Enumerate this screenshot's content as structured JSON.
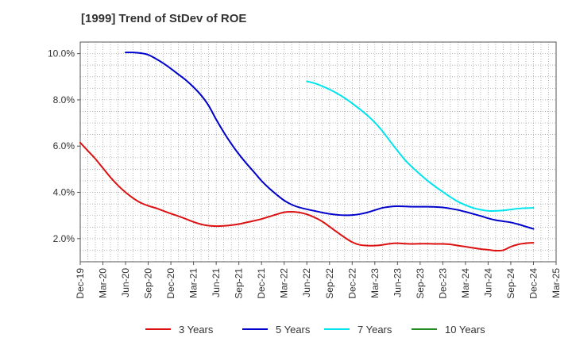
{
  "chart_data": {
    "type": "line",
    "title": "[1999]  Trend of StDev of ROE",
    "xlabel": "",
    "ylabel": "",
    "ylim": [
      1.0,
      10.5
    ],
    "y_ticks": [
      2.0,
      4.0,
      6.0,
      8.0,
      10.0
    ],
    "y_tick_labels": [
      "2.0%",
      "4.0%",
      "6.0%",
      "8.0%",
      "10.0%"
    ],
    "x_ticks": [
      "Dec-19",
      "Mar-20",
      "Jun-20",
      "Sep-20",
      "Dec-20",
      "Mar-21",
      "Jun-21",
      "Sep-21",
      "Dec-21",
      "Mar-22",
      "Jun-22",
      "Sep-22",
      "Dec-22",
      "Mar-23",
      "Jun-23",
      "Sep-23",
      "Dec-23",
      "Mar-24",
      "Jun-24",
      "Sep-24",
      "Dec-24",
      "Mar-25"
    ],
    "grid": true,
    "legend_position": "bottom",
    "series": [
      {
        "name": "3 Years",
        "color": "#dd1111",
        "points": [
          [
            "Dec-19",
            6.15
          ],
          [
            "Jan-20",
            5.8
          ],
          [
            "Feb-20",
            5.45
          ],
          [
            "Mar-20",
            5.05
          ],
          [
            "Apr-20",
            4.65
          ],
          [
            "May-20",
            4.3
          ],
          [
            "Jun-20",
            4.0
          ],
          [
            "Jul-20",
            3.75
          ],
          [
            "Aug-20",
            3.55
          ],
          [
            "Sep-20",
            3.42
          ],
          [
            "Oct-20",
            3.32
          ],
          [
            "Nov-20",
            3.2
          ],
          [
            "Dec-20",
            3.08
          ],
          [
            "Jan-21",
            2.97
          ],
          [
            "Feb-21",
            2.85
          ],
          [
            "Mar-21",
            2.72
          ],
          [
            "Apr-21",
            2.62
          ],
          [
            "May-21",
            2.56
          ],
          [
            "Jun-21",
            2.54
          ],
          [
            "Jul-21",
            2.55
          ],
          [
            "Aug-21",
            2.58
          ],
          [
            "Sep-21",
            2.63
          ],
          [
            "Oct-21",
            2.7
          ],
          [
            "Nov-21",
            2.77
          ],
          [
            "Dec-21",
            2.85
          ],
          [
            "Jan-22",
            2.95
          ],
          [
            "Feb-22",
            3.05
          ],
          [
            "Mar-22",
            3.14
          ],
          [
            "Apr-22",
            3.16
          ],
          [
            "May-22",
            3.13
          ],
          [
            "Jun-22",
            3.05
          ],
          [
            "Jul-22",
            2.92
          ],
          [
            "Aug-22",
            2.75
          ],
          [
            "Sep-22",
            2.52
          ],
          [
            "Oct-22",
            2.28
          ],
          [
            "Nov-22",
            2.05
          ],
          [
            "Dec-22",
            1.85
          ],
          [
            "Jan-23",
            1.73
          ],
          [
            "Feb-23",
            1.7
          ],
          [
            "Mar-23",
            1.7
          ],
          [
            "Apr-23",
            1.73
          ],
          [
            "May-23",
            1.78
          ],
          [
            "Jun-23",
            1.8
          ],
          [
            "Jul-23",
            1.78
          ],
          [
            "Aug-23",
            1.77
          ],
          [
            "Sep-23",
            1.78
          ],
          [
            "Oct-23",
            1.78
          ],
          [
            "Nov-23",
            1.77
          ],
          [
            "Dec-23",
            1.77
          ],
          [
            "Jan-24",
            1.75
          ],
          [
            "Feb-24",
            1.7
          ],
          [
            "Mar-24",
            1.65
          ],
          [
            "Apr-24",
            1.6
          ],
          [
            "May-24",
            1.55
          ],
          [
            "Jun-24",
            1.52
          ],
          [
            "Jul-24",
            1.48
          ],
          [
            "Aug-24",
            1.5
          ],
          [
            "Sep-24",
            1.65
          ],
          [
            "Oct-24",
            1.75
          ],
          [
            "Nov-24",
            1.8
          ],
          [
            "Dec-24",
            1.82
          ]
        ]
      },
      {
        "name": "5 Years",
        "color": "#0000cc",
        "points": [
          [
            "Jun-20",
            10.05
          ],
          [
            "Jul-20",
            10.05
          ],
          [
            "Aug-20",
            10.02
          ],
          [
            "Sep-20",
            9.95
          ],
          [
            "Oct-20",
            9.78
          ],
          [
            "Nov-20",
            9.58
          ],
          [
            "Dec-20",
            9.35
          ],
          [
            "Jan-21",
            9.1
          ],
          [
            "Feb-21",
            8.85
          ],
          [
            "Mar-21",
            8.55
          ],
          [
            "Apr-21",
            8.2
          ],
          [
            "May-21",
            7.75
          ],
          [
            "Jun-21",
            7.15
          ],
          [
            "Jul-21",
            6.6
          ],
          [
            "Aug-21",
            6.1
          ],
          [
            "Sep-21",
            5.65
          ],
          [
            "Oct-21",
            5.25
          ],
          [
            "Nov-21",
            4.88
          ],
          [
            "Dec-21",
            4.5
          ],
          [
            "Jan-22",
            4.18
          ],
          [
            "Feb-22",
            3.9
          ],
          [
            "Mar-22",
            3.65
          ],
          [
            "Apr-22",
            3.47
          ],
          [
            "May-22",
            3.35
          ],
          [
            "Jun-22",
            3.27
          ],
          [
            "Jul-22",
            3.2
          ],
          [
            "Aug-22",
            3.13
          ],
          [
            "Sep-22",
            3.07
          ],
          [
            "Oct-22",
            3.03
          ],
          [
            "Nov-22",
            3.01
          ],
          [
            "Dec-22",
            3.02
          ],
          [
            "Jan-23",
            3.06
          ],
          [
            "Feb-23",
            3.13
          ],
          [
            "Mar-23",
            3.23
          ],
          [
            "Apr-23",
            3.33
          ],
          [
            "May-23",
            3.38
          ],
          [
            "Jun-23",
            3.4
          ],
          [
            "Jul-23",
            3.39
          ],
          [
            "Aug-23",
            3.38
          ],
          [
            "Sep-23",
            3.38
          ],
          [
            "Oct-23",
            3.38
          ],
          [
            "Nov-23",
            3.37
          ],
          [
            "Dec-23",
            3.35
          ],
          [
            "Jan-24",
            3.3
          ],
          [
            "Feb-24",
            3.24
          ],
          [
            "Mar-24",
            3.16
          ],
          [
            "Apr-24",
            3.07
          ],
          [
            "May-24",
            2.98
          ],
          [
            "Jun-24",
            2.88
          ],
          [
            "Jul-24",
            2.8
          ],
          [
            "Aug-24",
            2.75
          ],
          [
            "Sep-24",
            2.7
          ],
          [
            "Oct-24",
            2.62
          ],
          [
            "Nov-24",
            2.52
          ],
          [
            "Dec-24",
            2.42
          ]
        ]
      },
      {
        "name": "7 Years",
        "color": "#00e5ee",
        "points": [
          [
            "Jun-22",
            8.8
          ],
          [
            "Jul-22",
            8.72
          ],
          [
            "Aug-22",
            8.6
          ],
          [
            "Sep-22",
            8.45
          ],
          [
            "Oct-22",
            8.28
          ],
          [
            "Nov-22",
            8.08
          ],
          [
            "Dec-22",
            7.85
          ],
          [
            "Jan-23",
            7.6
          ],
          [
            "Feb-23",
            7.33
          ],
          [
            "Mar-23",
            7.02
          ],
          [
            "Apr-23",
            6.65
          ],
          [
            "May-23",
            6.22
          ],
          [
            "Jun-23",
            5.8
          ],
          [
            "Jul-23",
            5.4
          ],
          [
            "Aug-23",
            5.07
          ],
          [
            "Sep-23",
            4.78
          ],
          [
            "Oct-23",
            4.5
          ],
          [
            "Nov-23",
            4.25
          ],
          [
            "Dec-23",
            4.02
          ],
          [
            "Jan-24",
            3.8
          ],
          [
            "Feb-24",
            3.6
          ],
          [
            "Mar-24",
            3.45
          ],
          [
            "Apr-24",
            3.33
          ],
          [
            "May-24",
            3.25
          ],
          [
            "Jun-24",
            3.2
          ],
          [
            "Jul-24",
            3.2
          ],
          [
            "Aug-24",
            3.22
          ],
          [
            "Sep-24",
            3.26
          ],
          [
            "Oct-24",
            3.3
          ],
          [
            "Nov-24",
            3.32
          ],
          [
            "Dec-24",
            3.33
          ]
        ]
      },
      {
        "name": "10 Years",
        "color": "#228b22",
        "points": []
      }
    ]
  }
}
